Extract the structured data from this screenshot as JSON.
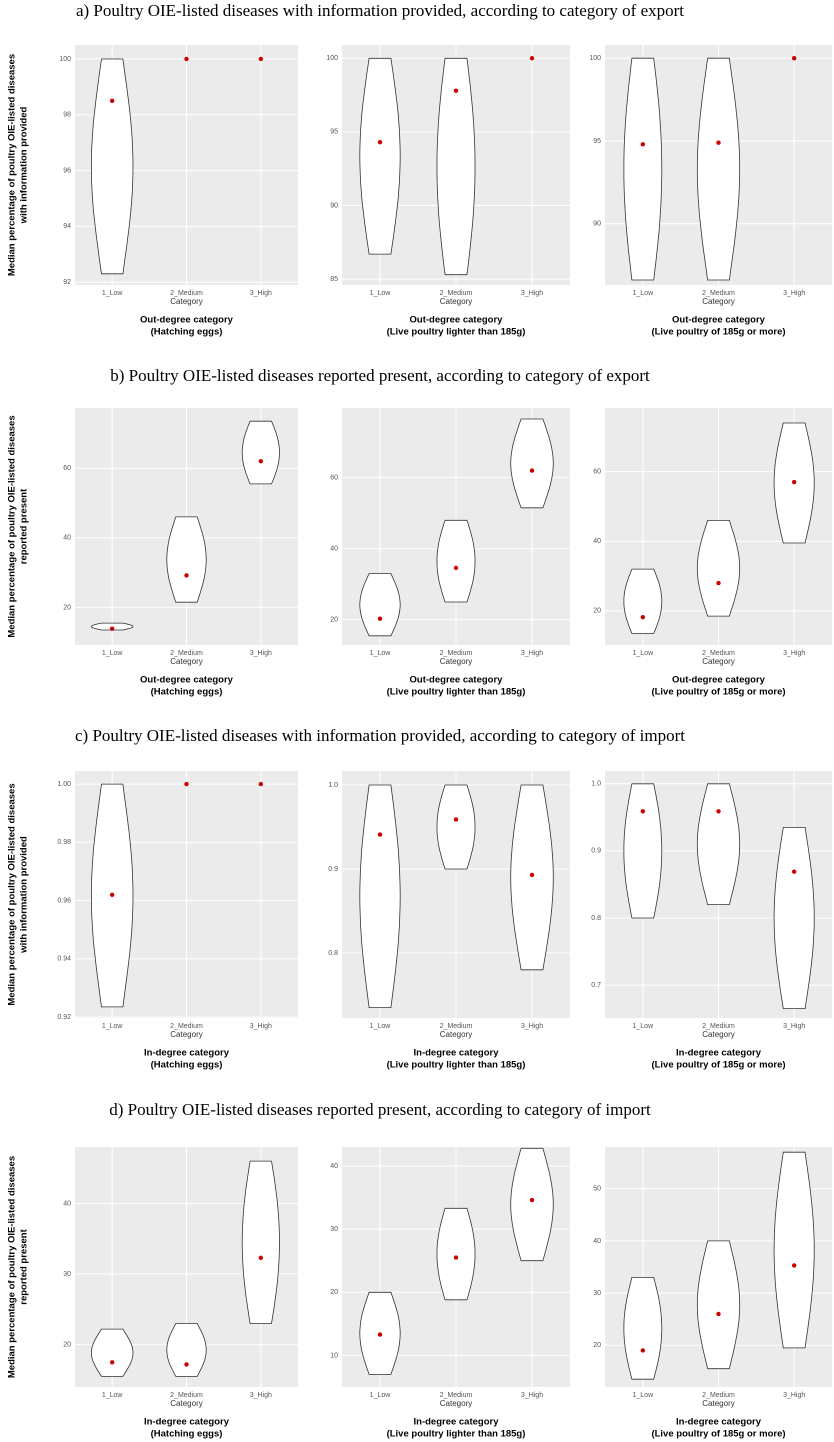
{
  "headings": [
    "a) Poultry OIE-listed diseases with information provided, according to category of export",
    "b) Poultry OIE-listed diseases reported present, according to category of export",
    "c) Poultry OIE-listed diseases with information provided, according to category of import",
    "d) Poultry OIE-listed diseases reported present, according to category of import"
  ],
  "y_titles": [
    [
      "Median percentage of poultry OIE-listed diseases",
      "with information provided"
    ],
    [
      "Median percentage of poultry OIE-listed diseases",
      "reported present"
    ],
    [
      "Median percentage of poultry OIE-listed diseases",
      "with information provided"
    ],
    [
      "Median percentage of poultry OIE-listed diseases",
      "reported present"
    ]
  ],
  "chart_data": [
    {
      "type": "violin",
      "x_title": "Category",
      "caption": [
        "Out-degree category",
        "(Hatching eggs)"
      ],
      "categories": [
        "1_Low",
        "2_Medium",
        "3_High"
      ],
      "min": [
        92.3,
        100,
        100
      ],
      "max": [
        100,
        100,
        100
      ],
      "median": [
        98.5,
        100,
        100
      ],
      "median_color": "#cc0000",
      "grid": true,
      "ylim": [
        91.9,
        100.5
      ],
      "yticks": [
        92,
        94,
        96,
        98,
        100
      ]
    },
    {
      "type": "violin",
      "x_title": "Category",
      "caption": [
        "Out-degree category",
        "(Live poultry lighter than 185g)"
      ],
      "categories": [
        "1_Low",
        "2_Medium",
        "3_High"
      ],
      "min": [
        86.7,
        85.3,
        100
      ],
      "max": [
        100,
        100,
        100
      ],
      "median": [
        94.3,
        97.8,
        100
      ],
      "median_color": "#cc0000",
      "grid": true,
      "ylim": [
        84.6,
        100.9
      ],
      "yticks": [
        85,
        90,
        95,
        100
      ]
    },
    {
      "type": "violin",
      "x_title": "Category",
      "caption": [
        "Out-degree category",
        "(Live poultry of 185g or more)"
      ],
      "categories": [
        "1_Low",
        "2_Medium",
        "3_High"
      ],
      "min": [
        86.6,
        86.6,
        100
      ],
      "max": [
        100,
        100,
        100
      ],
      "median": [
        94.8,
        94.9,
        100
      ],
      "median_color": "#cc0000",
      "grid": true,
      "ylim": [
        86.3,
        100.8
      ],
      "yticks": [
        90,
        95,
        100
      ]
    },
    {
      "type": "violin",
      "x_title": "Category",
      "caption": [
        "Out-degree category",
        "(Hatching eggs)"
      ],
      "categories": [
        "1_Low",
        "2_Medium",
        "3_High"
      ],
      "min": [
        13.5,
        21.5,
        55.5
      ],
      "max": [
        15.5,
        46,
        73.5
      ],
      "median": [
        13.9,
        29.2,
        62
      ],
      "median_color": "#cc0000",
      "grid": true,
      "ylim": [
        9.2,
        77.3
      ],
      "yticks": [
        20,
        40,
        60
      ]
    },
    {
      "type": "violin",
      "x_title": "Category",
      "caption": [
        "Out-degree category",
        "(Live poultry lighter than 185g)"
      ],
      "categories": [
        "1_Low",
        "2_Medium",
        "3_High"
      ],
      "min": [
        15.5,
        25,
        51.5
      ],
      "max": [
        33,
        48,
        76.5
      ],
      "median": [
        20.3,
        34.6,
        62
      ],
      "median_color": "#cc0000",
      "grid": true,
      "ylim": [
        12.9,
        79.6
      ],
      "yticks": [
        20,
        40,
        60
      ]
    },
    {
      "type": "violin",
      "x_title": "Category",
      "caption": [
        "Out-degree category",
        "(Live poultry of 185g or more)"
      ],
      "categories": [
        "1_Low",
        "2_Medium",
        "3_High"
      ],
      "min": [
        13.5,
        18.5,
        39.5
      ],
      "max": [
        32,
        46,
        74
      ],
      "median": [
        18.2,
        28,
        57
      ],
      "median_color": "#cc0000",
      "grid": true,
      "ylim": [
        10.2,
        78.3
      ],
      "yticks": [
        20,
        40,
        60
      ]
    },
    {
      "type": "violin",
      "x_title": "Category",
      "caption": [
        "In-degree category",
        "(Hatching eggs)"
      ],
      "categories": [
        "1_Low",
        "2_Medium",
        "3_High"
      ],
      "min": [
        0.9235,
        1,
        1
      ],
      "max": [
        1,
        1,
        1
      ],
      "median": [
        0.962,
        1,
        1
      ],
      "median_color": "#cc0000",
      "grid": true,
      "ylim": [
        0.9197,
        1.0045
      ],
      "yticks": [
        {
          "value": 0.92,
          "label": "0.92"
        },
        {
          "value": 0.94,
          "label": "0.94"
        },
        {
          "value": 0.96,
          "label": "0.96"
        },
        {
          "value": 0.98,
          "label": "0.98"
        },
        {
          "value": 1,
          "label": "1.00"
        }
      ]
    },
    {
      "type": "violin",
      "x_title": "Category",
      "caption": [
        "In-degree category",
        "(Live poultry lighter than 185g)"
      ],
      "categories": [
        "1_Low",
        "2_Medium",
        "3_High"
      ],
      "min": [
        0.735,
        0.9,
        0.78
      ],
      "max": [
        1,
        1,
        1
      ],
      "median": [
        0.941,
        0.959,
        0.893
      ],
      "median_color": "#cc0000",
      "grid": true,
      "ylim": [
        0.7226,
        1.0167
      ],
      "yticks": [
        0.8,
        0.9,
        {
          "value": 1,
          "label": "1.0"
        }
      ]
    },
    {
      "type": "violin",
      "x_title": "Category",
      "caption": [
        "In-degree category",
        "(Live poultry of 185g or more)"
      ],
      "categories": [
        "1_Low",
        "2_Medium",
        "3_High"
      ],
      "min": [
        0.8,
        0.82,
        0.665
      ],
      "max": [
        1,
        1,
        0.935
      ],
      "median": [
        0.959,
        0.959,
        0.869
      ],
      "median_color": "#cc0000",
      "grid": true,
      "ylim": [
        0.651,
        1.019
      ],
      "yticks": [
        0.7,
        0.8,
        0.9,
        {
          "value": 1,
          "label": "1.0"
        }
      ]
    },
    {
      "type": "violin",
      "x_title": "Category",
      "caption": [
        "In-degree category",
        "(Hatching eggs)"
      ],
      "categories": [
        "1_Low",
        "2_Medium",
        "3_High"
      ],
      "min": [
        15.5,
        15.5,
        23
      ],
      "max": [
        22.2,
        23,
        46
      ],
      "median": [
        17.5,
        17.2,
        32.3
      ],
      "median_color": "#cc0000",
      "grid": true,
      "ylim": [
        14,
        48
      ],
      "yticks": [
        20,
        30,
        40
      ]
    },
    {
      "type": "violin",
      "x_title": "Category",
      "caption": [
        "In-degree category",
        "(Live poultry lighter than 185g)"
      ],
      "categories": [
        "1_Low",
        "2_Medium",
        "3_High"
      ],
      "min": [
        7,
        18.8,
        25
      ],
      "max": [
        20,
        33.3,
        42.8
      ],
      "median": [
        13.3,
        25.5,
        34.6
      ],
      "median_color": "#cc0000",
      "grid": true,
      "ylim": [
        5,
        43
      ],
      "yticks": [
        10,
        20,
        30,
        40
      ]
    },
    {
      "type": "violin",
      "x_title": "Category",
      "caption": [
        "In-degree category",
        "(Live poultry of 185g or more)"
      ],
      "categories": [
        "1_Low",
        "2_Medium",
        "3_High"
      ],
      "min": [
        13.5,
        15.5,
        19.5
      ],
      "max": [
        33,
        40,
        57
      ],
      "median": [
        19,
        26,
        35.3
      ],
      "median_color": "#cc0000",
      "grid": true,
      "ylim": [
        12,
        58
      ],
      "yticks": [
        20,
        30,
        40,
        50
      ]
    }
  ]
}
